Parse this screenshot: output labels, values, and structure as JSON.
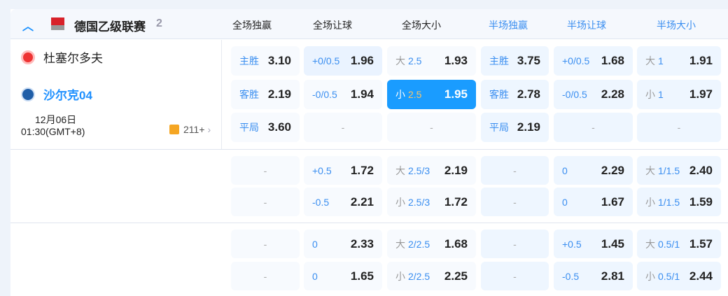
{
  "league": {
    "name": "德国乙级联赛",
    "count": "2"
  },
  "columns": [
    {
      "label": "全场独赢",
      "half": false
    },
    {
      "label": "全场让球",
      "half": false
    },
    {
      "label": "全场大小",
      "half": false
    },
    {
      "label": "半场独赢",
      "half": true
    },
    {
      "label": "半场让球",
      "half": true
    },
    {
      "label": "半场大小",
      "half": true
    }
  ],
  "match": {
    "home": "杜塞尔多夫",
    "away": "沙尔克04",
    "date": "12月06日",
    "time": "01:30(GMT+8)",
    "more": "211+"
  },
  "colors": {
    "accent": "#1890ff",
    "selected": "#1a9cff"
  },
  "blocks": [
    [
      [
        {
          "pre": "",
          "line": "主胜",
          "odds": "3.10"
        },
        {
          "pre": "",
          "line": "+0/0.5",
          "odds": "1.96",
          "hl": true
        },
        {
          "pre": "大",
          "line": "2.5",
          "odds": "1.93"
        },
        {
          "pre": "",
          "line": "主胜",
          "odds": "3.75"
        },
        {
          "pre": "",
          "line": "+0/0.5",
          "odds": "1.68"
        },
        {
          "pre": "大",
          "line": "1",
          "odds": "1.91"
        }
      ],
      [
        {
          "pre": "",
          "line": "客胜",
          "odds": "2.19"
        },
        {
          "pre": "",
          "line": "-0/0.5",
          "odds": "1.94"
        },
        {
          "pre": "小",
          "line": "2.5",
          "odds": "1.95",
          "sel": true
        },
        {
          "pre": "",
          "line": "客胜",
          "odds": "2.78"
        },
        {
          "pre": "",
          "line": "-0/0.5",
          "odds": "2.28"
        },
        {
          "pre": "小",
          "line": "1",
          "odds": "1.97"
        }
      ],
      [
        {
          "pre": "",
          "line": "平局",
          "odds": "3.60"
        },
        {
          "empty": "-"
        },
        {
          "empty": "-"
        },
        {
          "pre": "",
          "line": "平局",
          "odds": "2.19"
        },
        {
          "empty": "-"
        },
        {
          "empty": "-"
        }
      ]
    ],
    [
      [
        {
          "empty": "-"
        },
        {
          "pre": "",
          "line": "+0.5",
          "odds": "1.72"
        },
        {
          "pre": "大",
          "line": "2.5/3",
          "odds": "2.19"
        },
        {
          "empty": "-"
        },
        {
          "pre": "",
          "line": "0",
          "odds": "2.29"
        },
        {
          "pre": "大",
          "line": "1/1.5",
          "odds": "2.40"
        }
      ],
      [
        {
          "empty": "-"
        },
        {
          "pre": "",
          "line": "-0.5",
          "odds": "2.21"
        },
        {
          "pre": "小",
          "line": "2.5/3",
          "odds": "1.72"
        },
        {
          "empty": "-"
        },
        {
          "pre": "",
          "line": "0",
          "odds": "1.67"
        },
        {
          "pre": "小",
          "line": "1/1.5",
          "odds": "1.59"
        }
      ]
    ],
    [
      [
        {
          "empty": "-"
        },
        {
          "pre": "",
          "line": "0",
          "odds": "2.33"
        },
        {
          "pre": "大",
          "line": "2/2.5",
          "odds": "1.68"
        },
        {
          "empty": "-"
        },
        {
          "pre": "",
          "line": "+0.5",
          "odds": "1.45"
        },
        {
          "pre": "大",
          "line": "0.5/1",
          "odds": "1.57"
        }
      ],
      [
        {
          "empty": "-"
        },
        {
          "pre": "",
          "line": "0",
          "odds": "1.65"
        },
        {
          "pre": "小",
          "line": "2/2.5",
          "odds": "2.25"
        },
        {
          "empty": "-"
        },
        {
          "pre": "",
          "line": "-0.5",
          "odds": "2.81"
        },
        {
          "pre": "小",
          "line": "0.5/1",
          "odds": "2.44"
        }
      ]
    ]
  ]
}
